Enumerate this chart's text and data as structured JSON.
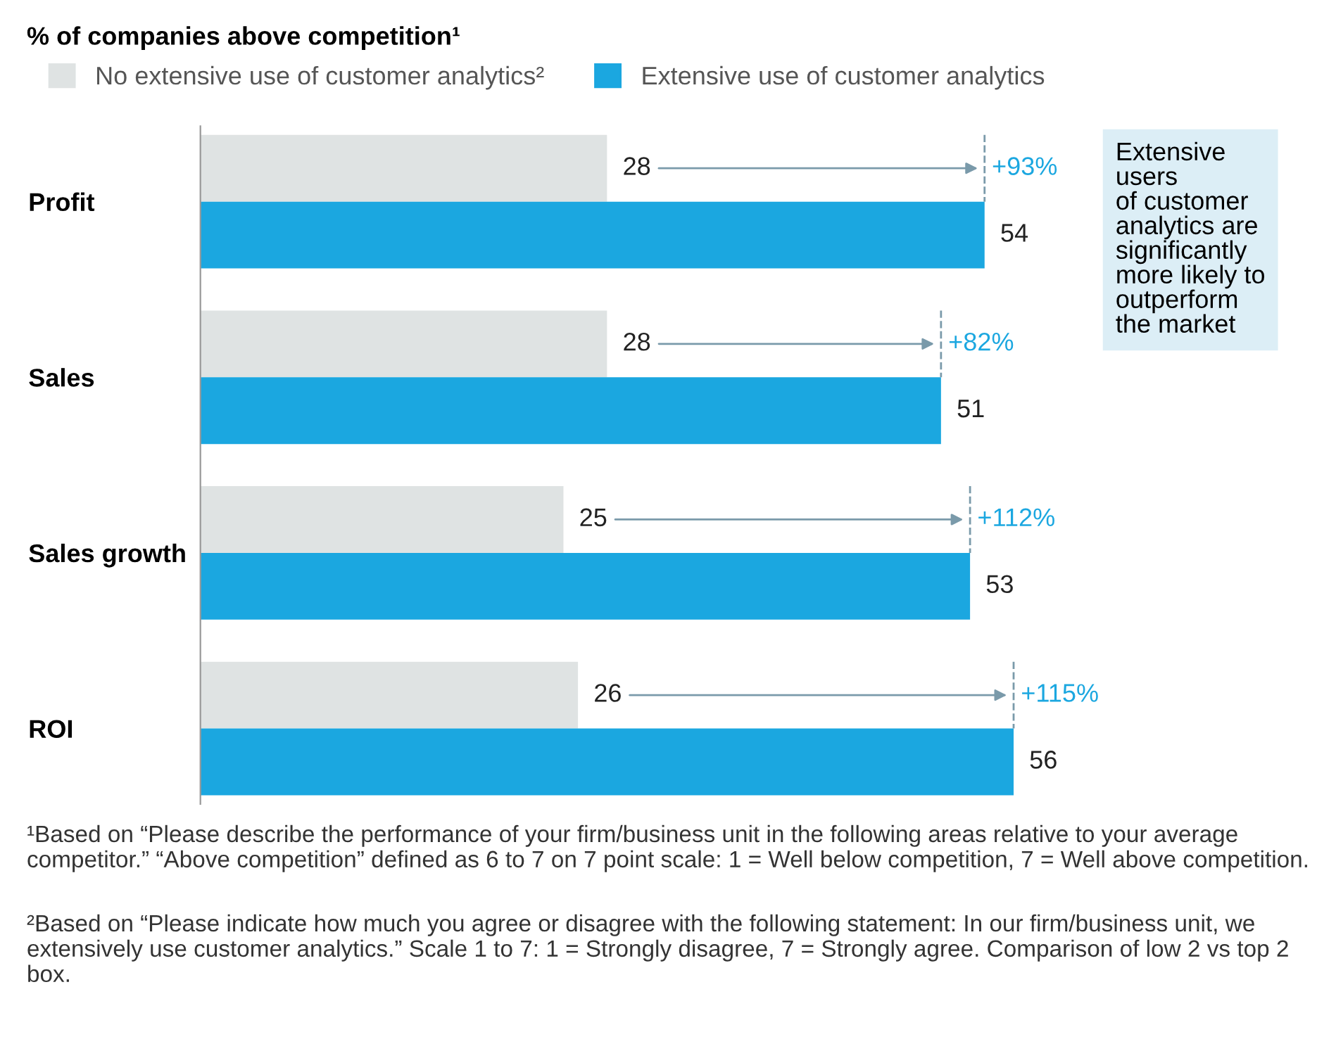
{
  "chart_data": {
    "type": "bar",
    "orientation": "horizontal",
    "title": "% of companies above competition¹",
    "categories": [
      "Profit",
      "Sales",
      "Sales growth",
      "ROI"
    ],
    "series": [
      {
        "name": "No extensive use of customer analytics²",
        "color": "#dfe3e3",
        "values": [
          28,
          28,
          25,
          26
        ]
      },
      {
        "name": "Extensive use of customer analytics",
        "color": "#1ba7e0",
        "values": [
          54,
          51,
          53,
          56
        ]
      }
    ],
    "data_labels": true,
    "legend": "top left",
    "tick_labels": "y",
    "grid": false,
    "annotations": [
      {
        "text": "+93%",
        "x": 54,
        "y": "Profit"
      },
      {
        "text": "+82%",
        "x": 51,
        "y": "Sales"
      },
      {
        "text": "+112%",
        "x": 53,
        "y": "Sales growth"
      },
      {
        "text": "+115%",
        "x": 56,
        "y": "ROI"
      },
      "Extensive\nusers\nof customer\nanalytics are\nsignificantly\nmore likely to\noutperform\nthe market",
      "¹Based on “Please describe the performance of your firm/business unit in the following areas relative to your average competitor.” “Above competition” defined as 6 to 7 on 7 point scale: 1 = Well below competition, 7 = Well above competition.",
      "²Based on “Please indicate how much you agree or disagree with the following statement: In our firm/business unit, we extensively use customer analytics.” Scale 1 to 7: 1 = Strongly disagree, 7 = Strongly agree. Comparison of low 2 vs top 2 box."
    ]
  }
}
